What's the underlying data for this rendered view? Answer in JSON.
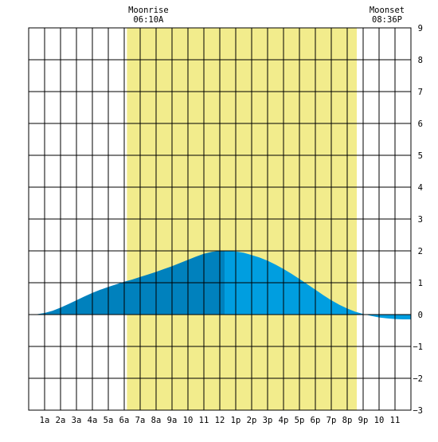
{
  "chart_data": {
    "type": "area",
    "title": "",
    "xlabel": "",
    "ylabel": "",
    "x_ticks": [
      "1a",
      "2a",
      "3a",
      "4a",
      "5a",
      "6a",
      "7a",
      "8a",
      "9a",
      "10",
      "11",
      "12",
      "1p",
      "2p",
      "3p",
      "4p",
      "5p",
      "6p",
      "7p",
      "8p",
      "9p",
      "10",
      "11"
    ],
    "y_ticks": [
      "9",
      "8",
      "7",
      "6",
      "5",
      "4",
      "3",
      "2",
      "1",
      "0",
      "−1",
      "−2",
      "−3"
    ],
    "xlim": [
      0,
      24
    ],
    "ylim": [
      -3,
      9
    ],
    "grid": true,
    "moonrise": {
      "label": "Moonrise",
      "time": "06:10A",
      "hour": 6.17
    },
    "moonset": {
      "label": "Moonset",
      "time": "08:36P",
      "hour": 20.6
    },
    "moon_up_color": "#f2ec8c",
    "series": [
      {
        "x": [
          0,
          0.5,
          1,
          1.5,
          2,
          2.5,
          3,
          3.5,
          4,
          4.5,
          5,
          5.5,
          6,
          6.5,
          7,
          7.5,
          8,
          8.5,
          9,
          9.5,
          10,
          10.5,
          11,
          11.5,
          12,
          12.3,
          13,
          13.5,
          14,
          14.5,
          15,
          15.5,
          16,
          16.5,
          17,
          17.5,
          18,
          18.5,
          19,
          19.5,
          20,
          20.5,
          21,
          21.5,
          22,
          22.5,
          23,
          23.5,
          24
        ],
        "y": [
          0,
          0.01,
          0.05,
          0.12,
          0.22,
          0.33,
          0.45,
          0.57,
          0.68,
          0.78,
          0.87,
          0.95,
          1.03,
          1.1,
          1.18,
          1.26,
          1.34,
          1.43,
          1.52,
          1.62,
          1.72,
          1.82,
          1.91,
          1.97,
          2.0,
          2.0,
          1.98,
          1.94,
          1.87,
          1.79,
          1.69,
          1.57,
          1.43,
          1.28,
          1.12,
          0.95,
          0.78,
          0.61,
          0.45,
          0.31,
          0.19,
          0.09,
          0.02,
          -0.04,
          -0.09,
          -0.12,
          -0.14,
          -0.15,
          -0.15
        ],
        "split_hour": 12.3,
        "color_before": "#0081bd",
        "color_after": "#009ee0"
      }
    ]
  }
}
